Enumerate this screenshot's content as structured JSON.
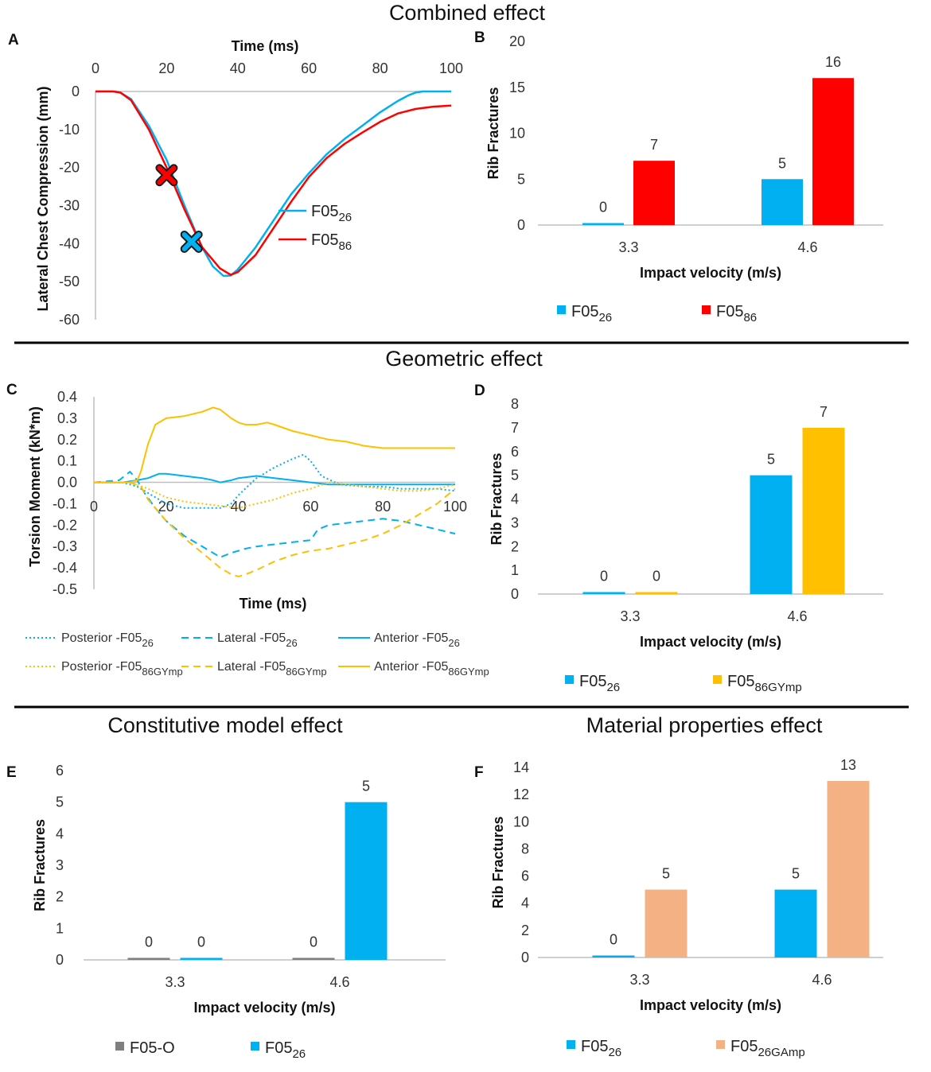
{
  "sections": {
    "combined": "Combined effect",
    "geometric": "Geometric effect",
    "constitutive": "Constitutive model effect",
    "material": "Material properties effect"
  },
  "colors": {
    "blue": "#00b0f0",
    "red": "#ff0000",
    "orange": "#ffc000",
    "gray": "#7f7f7f",
    "salmon": "#f4b183",
    "axis": "#bfbfbf"
  },
  "chart_data": [
    {
      "id": "A",
      "panel_letter": "A",
      "type": "line",
      "title": "",
      "xlabel": "Time (ms)",
      "ylabel": "Lateral Chest Compression (mm)",
      "xlim": [
        0,
        100
      ],
      "ylim": [
        -60,
        0
      ],
      "xticks": [
        "0",
        "20",
        "40",
        "60",
        "80",
        "100"
      ],
      "yticks": [
        "0",
        "-10",
        "-20",
        "-30",
        "-40",
        "-50",
        "-60"
      ],
      "series": [
        {
          "name": "F05",
          "sub": "26",
          "color": "#00b0f0",
          "x": [
            0,
            5,
            7,
            10,
            15,
            20,
            25,
            30,
            33,
            36,
            38,
            40,
            45,
            50,
            55,
            60,
            65,
            70,
            75,
            80,
            85,
            88,
            90,
            92,
            95,
            100
          ],
          "y": [
            0,
            0,
            -0.3,
            -2,
            -9,
            -18,
            -30,
            -41,
            -46,
            -48.5,
            -48.4,
            -46.8,
            -41,
            -34,
            -27,
            -21.5,
            -16.5,
            -12.5,
            -9,
            -5.5,
            -2.5,
            -1,
            -0.3,
            0,
            0,
            0
          ]
        },
        {
          "name": "F05",
          "sub": "86",
          "color": "#ff0000",
          "x": [
            0,
            5,
            7,
            10,
            15,
            20,
            25,
            30,
            35,
            38,
            40,
            45,
            50,
            55,
            60,
            65,
            70,
            75,
            80,
            85,
            90,
            95,
            100
          ],
          "y": [
            0,
            0,
            -0.3,
            -2.3,
            -10,
            -20,
            -31,
            -41,
            -46.5,
            -48.2,
            -47.5,
            -43,
            -36,
            -29,
            -22.5,
            -17.5,
            -13.8,
            -10.8,
            -8,
            -5.8,
            -4.6,
            -4,
            -3.7
          ]
        }
      ],
      "markers": [
        {
          "series": "F05_86",
          "x": 20,
          "y": -22,
          "color": "#ff0000"
        },
        {
          "series": "F05_26",
          "x": 27,
          "y": -39.5,
          "color": "#00b0f0"
        }
      ]
    },
    {
      "id": "B",
      "panel_letter": "B",
      "type": "bar",
      "title": "",
      "xlabel": "Impact velocity (m/s)",
      "ylabel": "Rib Fractures",
      "categories": [
        "3.3",
        "4.6"
      ],
      "ylim": [
        0,
        20
      ],
      "yticks": [
        "0",
        "5",
        "10",
        "15",
        "20"
      ],
      "series": [
        {
          "name": "F05",
          "sub": "26",
          "color": "#00b0f0",
          "values": [
            0,
            5
          ],
          "labels": [
            "0",
            "5"
          ]
        },
        {
          "name": "F05",
          "sub": "86",
          "color": "#ff0000",
          "values": [
            7,
            16
          ],
          "labels": [
            "7",
            "16"
          ]
        }
      ]
    },
    {
      "id": "C",
      "panel_letter": "C",
      "type": "line",
      "title": "",
      "xlabel": "Time (ms)",
      "ylabel": "Torsion Moment (kN*m)",
      "xlim": [
        0,
        100
      ],
      "ylim": [
        -0.5,
        0.4
      ],
      "xticks": [
        "0",
        "20",
        "40",
        "60",
        "80",
        "100"
      ],
      "yticks": [
        "0.4",
        "0.3",
        "0.2",
        "0.1",
        "0.0",
        "-0.1",
        "-0.2",
        "-0.3",
        "-0.4",
        "-0.5"
      ],
      "series": [
        {
          "name": "Posterior -F05",
          "sub": "26",
          "color": "#00b0f0",
          "style": "dotted",
          "x": [
            0,
            8,
            12,
            15,
            20,
            25,
            30,
            35,
            38,
            40,
            45,
            50,
            55,
            58,
            60,
            63,
            68,
            75,
            80,
            85,
            90,
            95,
            100
          ],
          "y": [
            0,
            0,
            -0.02,
            -0.05,
            -0.1,
            -0.12,
            -0.12,
            -0.12,
            -0.1,
            -0.06,
            0.02,
            0.07,
            0.11,
            0.13,
            0.1,
            0.03,
            -0.01,
            -0.02,
            -0.02,
            -0.03,
            -0.03,
            -0.03,
            -0.04
          ]
        },
        {
          "name": "Lateral -F05",
          "sub": "26",
          "color": "#00b0f0",
          "style": "dashed",
          "x": [
            0,
            7,
            10,
            12,
            14,
            17,
            20,
            25,
            30,
            35,
            38,
            42,
            45,
            50,
            55,
            60,
            62,
            65,
            70,
            75,
            80,
            85,
            90,
            95,
            100
          ],
          "y": [
            0,
            0.01,
            0.05,
            0.01,
            -0.05,
            -0.12,
            -0.18,
            -0.25,
            -0.3,
            -0.35,
            -0.33,
            -0.31,
            -0.3,
            -0.29,
            -0.28,
            -0.27,
            -0.22,
            -0.2,
            -0.19,
            -0.18,
            -0.17,
            -0.18,
            -0.2,
            -0.22,
            -0.24
          ]
        },
        {
          "name": "Anterior -F05",
          "sub": "26",
          "color": "#00b0f0",
          "style": "solid",
          "x": [
            0,
            8,
            12,
            15,
            18,
            20,
            25,
            30,
            33,
            35,
            38,
            40,
            45,
            50,
            55,
            60,
            65,
            70,
            75,
            80,
            90,
            100
          ],
          "y": [
            0,
            0,
            0.01,
            0.02,
            0.04,
            0.04,
            0.03,
            0.02,
            0.01,
            0.0,
            0.01,
            0.02,
            0.03,
            0.02,
            0.01,
            0.0,
            -0.01,
            -0.01,
            -0.01,
            -0.01,
            -0.01,
            -0.01
          ]
        },
        {
          "name": "Posterior -F05",
          "sub": "86GYmp",
          "color": "#ffc000",
          "style": "dotted",
          "x": [
            0,
            10,
            15,
            20,
            25,
            30,
            35,
            40,
            45,
            50,
            55,
            60,
            65,
            70,
            75,
            80,
            85,
            90,
            95,
            100
          ],
          "y": [
            0,
            0,
            -0.03,
            -0.07,
            -0.09,
            -0.1,
            -0.11,
            -0.12,
            -0.1,
            -0.08,
            -0.05,
            -0.03,
            0.0,
            -0.01,
            -0.02,
            -0.03,
            -0.04,
            -0.04,
            -0.03,
            -0.01
          ]
        },
        {
          "name": "Lateral -F05",
          "sub": "86GYmp",
          "color": "#ffc000",
          "style": "dashed",
          "x": [
            0,
            10,
            13,
            15,
            20,
            25,
            30,
            35,
            38,
            40,
            42,
            45,
            50,
            55,
            60,
            65,
            70,
            75,
            80,
            85,
            90,
            95,
            100
          ],
          "y": [
            0,
            0,
            -0.02,
            -0.08,
            -0.18,
            -0.26,
            -0.33,
            -0.4,
            -0.43,
            -0.44,
            -0.43,
            -0.41,
            -0.37,
            -0.34,
            -0.32,
            -0.31,
            -0.29,
            -0.27,
            -0.24,
            -0.2,
            -0.15,
            -0.1,
            -0.03
          ]
        },
        {
          "name": "Anterior -F05",
          "sub": "86GYmp",
          "color": "#ffc000",
          "style": "solid",
          "x": [
            0,
            10,
            12,
            13,
            15,
            17,
            20,
            25,
            30,
            33,
            35,
            38,
            40,
            42,
            45,
            48,
            50,
            55,
            60,
            65,
            70,
            75,
            80,
            85,
            90,
            95,
            100
          ],
          "y": [
            0,
            0,
            0.01,
            0.05,
            0.18,
            0.27,
            0.3,
            0.31,
            0.33,
            0.35,
            0.34,
            0.3,
            0.28,
            0.27,
            0.27,
            0.28,
            0.27,
            0.24,
            0.22,
            0.2,
            0.19,
            0.17,
            0.16,
            0.16,
            0.16,
            0.16,
            0.16
          ]
        }
      ]
    },
    {
      "id": "D",
      "panel_letter": "D",
      "type": "bar",
      "title": "",
      "xlabel": "Impact velocity (m/s)",
      "ylabel": "Rib Fractures",
      "categories": [
        "3.3",
        "4.6"
      ],
      "ylim": [
        0,
        8
      ],
      "yticks": [
        "0",
        "1",
        "2",
        "3",
        "4",
        "5",
        "6",
        "7",
        "8"
      ],
      "series": [
        {
          "name": "F05",
          "sub": "26",
          "color": "#00b0f0",
          "values": [
            0,
            5
          ],
          "labels": [
            "0",
            "5"
          ]
        },
        {
          "name": "F05",
          "sub": "86GYmp",
          "color": "#ffc000",
          "values": [
            0,
            7
          ],
          "labels": [
            "0",
            "7"
          ]
        }
      ]
    },
    {
      "id": "E",
      "panel_letter": "E",
      "type": "bar",
      "title": "",
      "xlabel": "Impact velocity (m/s)",
      "ylabel": "Rib Fractures",
      "categories": [
        "3.3",
        "4.6"
      ],
      "ylim": [
        0,
        6
      ],
      "yticks": [
        "0",
        "1",
        "2",
        "3",
        "4",
        "5",
        "6"
      ],
      "series": [
        {
          "name": "F05-O",
          "sub": "",
          "color": "#7f7f7f",
          "values": [
            0,
            0
          ],
          "labels": [
            "0",
            "0"
          ]
        },
        {
          "name": "F05",
          "sub": "26",
          "color": "#00b0f0",
          "values": [
            0,
            5
          ],
          "labels": [
            "0",
            "5"
          ]
        }
      ]
    },
    {
      "id": "F",
      "panel_letter": "F",
      "type": "bar",
      "title": "",
      "xlabel": "Impact velocity (m/s)",
      "ylabel": "Rib Fractures",
      "categories": [
        "3.3",
        "4.6"
      ],
      "ylim": [
        0,
        14
      ],
      "yticks": [
        "0",
        "2",
        "4",
        "6",
        "8",
        "10",
        "12",
        "14"
      ],
      "series": [
        {
          "name": "F05",
          "sub": "26",
          "color": "#00b0f0",
          "values": [
            0,
            5
          ],
          "labels": [
            "0",
            "5"
          ]
        },
        {
          "name": "F05",
          "sub": "26GAmp",
          "color": "#f4b183",
          "values": [
            5,
            13
          ],
          "labels": [
            "5",
            "13"
          ]
        }
      ]
    }
  ]
}
